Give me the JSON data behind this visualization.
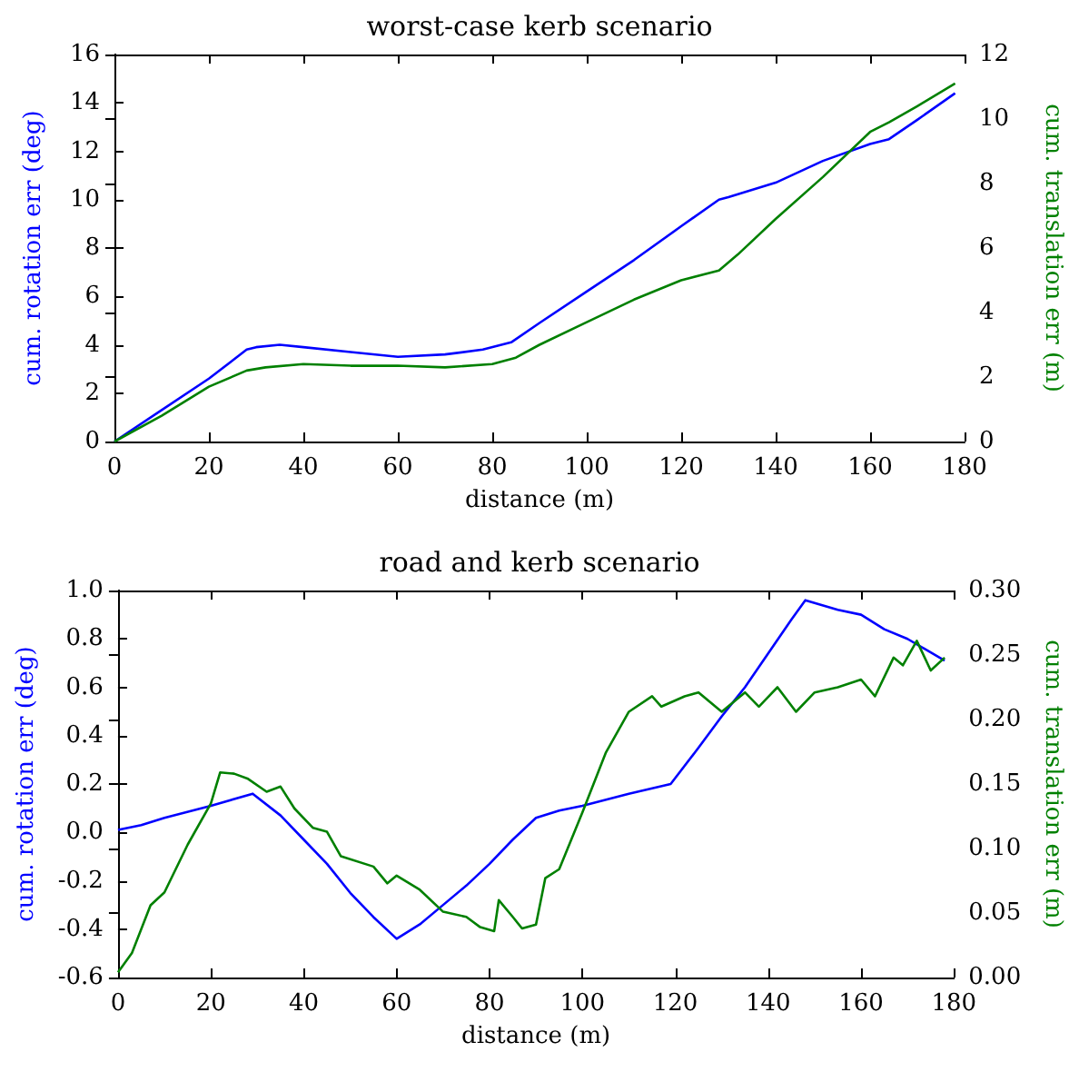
{
  "chart_data": [
    {
      "type": "line",
      "title": "worst-case kerb scenario",
      "xlabel": "distance (m)",
      "ylabel": "cum. rotation err (deg)",
      "y2label": "cum. translation err (m)",
      "xlim": [
        0,
        180
      ],
      "xticks": [
        0,
        20,
        40,
        60,
        80,
        100,
        120,
        140,
        160,
        180
      ],
      "ylim": [
        0,
        16
      ],
      "yticks": [
        0,
        2,
        4,
        6,
        8,
        10,
        12,
        14,
        16
      ],
      "y2lim": [
        0,
        12
      ],
      "y2ticks": [
        0,
        2,
        4,
        6,
        8,
        10,
        12
      ],
      "grid": false,
      "marker": "none",
      "line_style": "solid",
      "series": [
        {
          "color": "#0000ff",
          "x": [
            0,
            10,
            20,
            28,
            30,
            35,
            40,
            50,
            60,
            70,
            78,
            84,
            90,
            100,
            110,
            120,
            128,
            130,
            140,
            150,
            160,
            164,
            170,
            178
          ],
          "values": [
            0,
            1.3,
            2.6,
            3.8,
            3.9,
            4.0,
            3.9,
            3.7,
            3.5,
            3.6,
            3.8,
            4.1,
            4.9,
            6.2,
            7.5,
            8.9,
            10.0,
            10.1,
            10.7,
            11.6,
            12.3,
            12.5,
            13.3,
            14.4
          ]
        },
        {
          "color": "#008000",
          "axis": "y2",
          "x": [
            0,
            10,
            20,
            28,
            32,
            40,
            50,
            60,
            70,
            80,
            85,
            90,
            100,
            110,
            120,
            128,
            132,
            140,
            150,
            160,
            164,
            170,
            178
          ],
          "values": [
            0,
            0.8,
            1.7,
            2.2,
            2.3,
            2.4,
            2.35,
            2.35,
            2.3,
            2.4,
            2.6,
            3.0,
            3.7,
            4.4,
            5.0,
            5.3,
            5.8,
            6.9,
            8.2,
            9.6,
            9.9,
            10.4,
            11.1
          ]
        }
      ]
    },
    {
      "type": "line",
      "title": "road and kerb scenario",
      "xlabel": "distance (m)",
      "ylabel": "cum. rotation err (deg)",
      "y2label": "cum. translation err (m)",
      "xlim": [
        0,
        180
      ],
      "xticks": [
        0,
        20,
        40,
        60,
        80,
        100,
        120,
        140,
        160,
        180
      ],
      "ylim": [
        -0.6,
        1.0
      ],
      "yticks": [
        -0.6,
        -0.4,
        -0.2,
        {
          "value": 0,
          "label": "0.0"
        },
        0.2,
        0.4,
        0.6,
        0.8,
        {
          "value": 1,
          "label": "1.0"
        }
      ],
      "y2lim": [
        0,
        0.3
      ],
      "y2ticks": [
        {
          "value": 0,
          "label": "0.00"
        },
        0.05,
        {
          "value": 0.1,
          "label": "0.10"
        },
        0.15,
        {
          "value": 0.2,
          "label": "0.20"
        },
        0.25,
        {
          "value": 0.3,
          "label": "0.30"
        }
      ],
      "grid": false,
      "marker": "none",
      "line_style": "solid",
      "series": [
        {
          "color": "#0000ff",
          "x": [
            0,
            5,
            10,
            20,
            29,
            35,
            40,
            45,
            50,
            55,
            60,
            65,
            70,
            75,
            80,
            85,
            90,
            95,
            100,
            110,
            119,
            125,
            130,
            135,
            140,
            145,
            148,
            155,
            160,
            165,
            170,
            178
          ],
          "values": [
            0.01,
            0.03,
            0.06,
            0.11,
            0.16,
            0.07,
            -0.03,
            -0.13,
            -0.25,
            -0.35,
            -0.44,
            -0.38,
            -0.3,
            -0.22,
            -0.13,
            -0.03,
            0.06,
            0.09,
            0.11,
            0.16,
            0.2,
            0.35,
            0.48,
            0.6,
            0.74,
            0.88,
            0.96,
            0.92,
            0.9,
            0.84,
            0.8,
            0.71
          ]
        },
        {
          "color": "#008000",
          "axis": "y2",
          "x": [
            0,
            3,
            7,
            10,
            15,
            20,
            22,
            25,
            28,
            32,
            35,
            38,
            42,
            45,
            48,
            55,
            58,
            60,
            65,
            70,
            75,
            78,
            81,
            82,
            85,
            87,
            90,
            92,
            95,
            100,
            105,
            110,
            115,
            117,
            122,
            125,
            130,
            135,
            138,
            142,
            146,
            150,
            155,
            160,
            163,
            167,
            169,
            172,
            175,
            178
          ],
          "values": [
            0.004,
            0.019,
            0.056,
            0.066,
            0.103,
            0.135,
            0.159,
            0.158,
            0.154,
            0.144,
            0.148,
            0.131,
            0.116,
            0.113,
            0.094,
            0.086,
            0.073,
            0.079,
            0.068,
            0.051,
            0.047,
            0.039,
            0.036,
            0.06,
            0.047,
            0.038,
            0.041,
            0.077,
            0.084,
            0.128,
            0.174,
            0.206,
            0.218,
            0.21,
            0.218,
            0.221,
            0.206,
            0.221,
            0.21,
            0.225,
            0.206,
            0.221,
            0.225,
            0.231,
            0.218,
            0.248,
            0.242,
            0.261,
            0.238,
            0.248
          ]
        }
      ]
    }
  ]
}
